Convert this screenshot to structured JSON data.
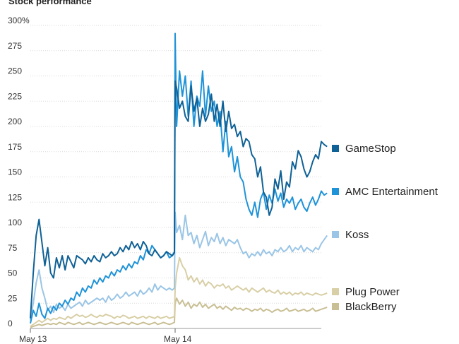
{
  "chart_data": {
    "type": "line",
    "title": "Stock performance",
    "xlabel": "",
    "ylabel": "",
    "ylim": [
      0,
      300
    ],
    "yticks": [
      0,
      25,
      50,
      75,
      100,
      125,
      150,
      175,
      200,
      225,
      250,
      275,
      300
    ],
    "ytick_labels": [
      "0",
      "25",
      "50",
      "75",
      "100",
      "125",
      "150",
      "175",
      "200",
      "225",
      "250",
      "275",
      "300%"
    ],
    "x_range": [
      0,
      2.06
    ],
    "x_ticks": [
      {
        "x": 0,
        "label": "May 13"
      },
      {
        "x": 1,
        "label": "May 14"
      }
    ],
    "legend_position": "right",
    "series": [
      {
        "name": "GameStop",
        "color": "#0f6196",
        "x": [
          0,
          0.02,
          0.04,
          0.06,
          0.08,
          0.1,
          0.12,
          0.14,
          0.16,
          0.18,
          0.2,
          0.22,
          0.24,
          0.26,
          0.28,
          0.3,
          0.32,
          0.34,
          0.36,
          0.38,
          0.4,
          0.42,
          0.44,
          0.46,
          0.48,
          0.5,
          0.52,
          0.54,
          0.56,
          0.58,
          0.6,
          0.62,
          0.64,
          0.66,
          0.68,
          0.7,
          0.72,
          0.74,
          0.76,
          0.78,
          0.8,
          0.82,
          0.84,
          0.86,
          0.88,
          0.9,
          0.92,
          0.94,
          0.96,
          0.98,
          0.995,
          1.0,
          1.01,
          1.03,
          1.05,
          1.07,
          1.09,
          1.11,
          1.13,
          1.15,
          1.17,
          1.19,
          1.21,
          1.23,
          1.25,
          1.27,
          1.29,
          1.31,
          1.33,
          1.35,
          1.37,
          1.39,
          1.41,
          1.43,
          1.45,
          1.47,
          1.49,
          1.51,
          1.53,
          1.55,
          1.57,
          1.59,
          1.61,
          1.63,
          1.65,
          1.67,
          1.69,
          1.71,
          1.73,
          1.75,
          1.77,
          1.79,
          1.81,
          1.83,
          1.85,
          1.87,
          1.89,
          1.91,
          1.93,
          1.95,
          1.97,
          1.99,
          2.01,
          2.03,
          2.05
        ],
        "y": [
          10,
          55,
          92,
          108,
          85,
          62,
          80,
          55,
          50,
          70,
          60,
          72,
          58,
          72,
          66,
          60,
          72,
          70,
          68,
          64,
          70,
          66,
          72,
          68,
          66,
          74,
          70,
          72,
          76,
          72,
          74,
          80,
          76,
          82,
          78,
          86,
          80,
          84,
          78,
          86,
          82,
          74,
          72,
          78,
          74,
          70,
          72,
          76,
          74,
          72,
          75,
          245,
          238,
          218,
          225,
          210,
          205,
          240,
          215,
          228,
          200,
          218,
          205,
          212,
          232,
          205,
          222,
          200,
          225,
          195,
          215,
          198,
          202,
          190,
          195,
          180,
          188,
          185,
          172,
          168,
          150,
          160,
          135,
          130,
          112,
          120,
          148,
          138,
          156,
          128,
          145,
          140,
          165,
          158,
          176,
          170,
          158,
          150,
          155,
          165,
          172,
          168,
          185,
          182,
          180
        ]
      },
      {
        "name": "AMC Entertainment",
        "color": "#1f93d8",
        "x": [
          0,
          0.02,
          0.04,
          0.06,
          0.08,
          0.1,
          0.12,
          0.14,
          0.16,
          0.18,
          0.2,
          0.22,
          0.24,
          0.26,
          0.28,
          0.3,
          0.32,
          0.34,
          0.36,
          0.38,
          0.4,
          0.42,
          0.44,
          0.46,
          0.48,
          0.5,
          0.52,
          0.54,
          0.56,
          0.58,
          0.6,
          0.62,
          0.64,
          0.66,
          0.68,
          0.7,
          0.72,
          0.74,
          0.76,
          0.78,
          0.8,
          0.82,
          0.84,
          0.86,
          0.88,
          0.9,
          0.92,
          0.94,
          0.96,
          0.98,
          0.995,
          1.0,
          1.01,
          1.03,
          1.05,
          1.07,
          1.09,
          1.11,
          1.13,
          1.15,
          1.17,
          1.19,
          1.21,
          1.23,
          1.25,
          1.27,
          1.29,
          1.31,
          1.33,
          1.35,
          1.37,
          1.39,
          1.41,
          1.43,
          1.45,
          1.47,
          1.49,
          1.51,
          1.53,
          1.55,
          1.57,
          1.59,
          1.61,
          1.63,
          1.65,
          1.67,
          1.69,
          1.71,
          1.73,
          1.75,
          1.77,
          1.79,
          1.81,
          1.83,
          1.85,
          1.87,
          1.89,
          1.91,
          1.93,
          1.95,
          1.97,
          1.99,
          2.01,
          2.03,
          2.05
        ],
        "y": [
          5,
          18,
          12,
          25,
          14,
          10,
          20,
          15,
          22,
          18,
          25,
          22,
          28,
          24,
          30,
          28,
          36,
          32,
          40,
          36,
          42,
          40,
          48,
          44,
          50,
          46,
          52,
          50,
          56,
          52,
          58,
          56,
          62,
          58,
          64,
          60,
          66,
          64,
          72,
          68,
          78,
          74,
          82,
          78,
          74,
          70,
          72,
          76,
          70,
          72,
          76,
          292,
          200,
          255,
          230,
          250,
          210,
          245,
          200,
          230,
          220,
          255,
          210,
          240,
          215,
          225,
          200,
          215,
          175,
          205,
          170,
          180,
          155,
          170,
          150,
          145,
          128,
          118,
          112,
          125,
          110,
          128,
          135,
          118,
          132,
          124,
          138,
          126,
          134,
          120,
          128,
          124,
          130,
          118,
          124,
          128,
          120,
          116,
          124,
          130,
          122,
          128,
          136,
          132,
          134
        ]
      },
      {
        "name": "Koss",
        "color": "#9ac5e6",
        "x": [
          0,
          0.02,
          0.04,
          0.06,
          0.08,
          0.1,
          0.12,
          0.14,
          0.16,
          0.18,
          0.2,
          0.22,
          0.24,
          0.26,
          0.28,
          0.3,
          0.32,
          0.34,
          0.36,
          0.38,
          0.4,
          0.42,
          0.44,
          0.46,
          0.48,
          0.5,
          0.52,
          0.54,
          0.56,
          0.58,
          0.6,
          0.62,
          0.64,
          0.66,
          0.68,
          0.7,
          0.72,
          0.74,
          0.76,
          0.78,
          0.8,
          0.82,
          0.84,
          0.86,
          0.88,
          0.9,
          0.92,
          0.94,
          0.96,
          0.98,
          0.995,
          1.0,
          1.01,
          1.03,
          1.05,
          1.07,
          1.09,
          1.11,
          1.13,
          1.15,
          1.17,
          1.19,
          1.21,
          1.23,
          1.25,
          1.27,
          1.29,
          1.31,
          1.33,
          1.35,
          1.37,
          1.39,
          1.41,
          1.43,
          1.45,
          1.47,
          1.49,
          1.51,
          1.53,
          1.55,
          1.57,
          1.59,
          1.61,
          1.63,
          1.65,
          1.67,
          1.69,
          1.71,
          1.73,
          1.75,
          1.77,
          1.79,
          1.81,
          1.83,
          1.85,
          1.87,
          1.89,
          1.91,
          1.93,
          1.95,
          1.97,
          1.99,
          2.01,
          2.03,
          2.05
        ],
        "y": [
          8,
          25,
          45,
          58,
          40,
          30,
          18,
          22,
          16,
          24,
          20,
          22,
          18,
          24,
          20,
          22,
          24,
          26,
          22,
          28,
          24,
          26,
          28,
          30,
          28,
          30,
          26,
          32,
          28,
          30,
          34,
          30,
          32,
          36,
          32,
          34,
          36,
          32,
          38,
          34,
          36,
          40,
          36,
          44,
          38,
          42,
          40,
          38,
          40,
          38,
          40,
          115,
          95,
          102,
          88,
          112,
          92,
          95,
          84,
          92,
          80,
          88,
          96,
          82,
          90,
          86,
          94,
          84,
          90,
          82,
          88,
          86,
          84,
          88,
          80,
          74,
          76,
          70,
          74,
          72,
          76,
          72,
          78,
          74,
          76,
          72,
          78,
          76,
          80,
          76,
          78,
          82,
          76,
          80,
          78,
          82,
          76,
          80,
          78,
          76,
          80,
          78,
          84,
          88,
          92
        ]
      },
      {
        "name": "Plug Power",
        "color": "#d8cfa6",
        "x": [
          0,
          0.02,
          0.04,
          0.06,
          0.08,
          0.1,
          0.12,
          0.14,
          0.16,
          0.18,
          0.2,
          0.22,
          0.24,
          0.26,
          0.28,
          0.3,
          0.32,
          0.34,
          0.36,
          0.38,
          0.4,
          0.42,
          0.44,
          0.46,
          0.48,
          0.5,
          0.52,
          0.54,
          0.56,
          0.58,
          0.6,
          0.62,
          0.64,
          0.66,
          0.68,
          0.7,
          0.72,
          0.74,
          0.76,
          0.78,
          0.8,
          0.82,
          0.84,
          0.86,
          0.88,
          0.9,
          0.92,
          0.94,
          0.96,
          0.98,
          0.995,
          1.0,
          1.01,
          1.03,
          1.05,
          1.07,
          1.09,
          1.11,
          1.13,
          1.15,
          1.17,
          1.19,
          1.21,
          1.23,
          1.25,
          1.27,
          1.29,
          1.31,
          1.33,
          1.35,
          1.37,
          1.39,
          1.41,
          1.43,
          1.45,
          1.47,
          1.49,
          1.51,
          1.53,
          1.55,
          1.57,
          1.59,
          1.61,
          1.63,
          1.65,
          1.67,
          1.69,
          1.71,
          1.73,
          1.75,
          1.77,
          1.79,
          1.81,
          1.83,
          1.85,
          1.87,
          1.89,
          1.91,
          1.93,
          1.95,
          1.97,
          1.99,
          2.01,
          2.03,
          2.05
        ],
        "y": [
          2,
          4,
          6,
          8,
          6,
          8,
          10,
          8,
          10,
          9,
          11,
          10,
          9,
          12,
          10,
          12,
          14,
          12,
          13,
          11,
          12,
          14,
          12,
          11,
          13,
          12,
          14,
          13,
          12,
          10,
          12,
          11,
          13,
          12,
          10,
          11,
          12,
          10,
          11,
          12,
          10,
          12,
          11,
          10,
          12,
          10,
          11,
          12,
          10,
          11,
          12,
          40,
          55,
          70,
          62,
          58,
          48,
          52,
          46,
          50,
          44,
          48,
          42,
          46,
          44,
          40,
          43,
          42,
          44,
          40,
          42,
          38,
          40,
          42,
          40,
          38,
          40,
          36,
          40,
          38,
          36,
          38,
          40,
          36,
          38,
          36,
          35,
          38,
          34,
          36,
          34,
          36,
          33,
          35,
          34,
          36,
          33,
          35,
          34,
          33,
          35,
          34,
          33,
          34,
          35
        ]
      },
      {
        "name": "BlackBerry",
        "color": "#c9bf94",
        "x": [
          0,
          0.02,
          0.04,
          0.06,
          0.08,
          0.1,
          0.12,
          0.14,
          0.16,
          0.18,
          0.2,
          0.22,
          0.24,
          0.26,
          0.28,
          0.3,
          0.32,
          0.34,
          0.36,
          0.38,
          0.4,
          0.42,
          0.44,
          0.46,
          0.48,
          0.5,
          0.52,
          0.54,
          0.56,
          0.58,
          0.6,
          0.62,
          0.64,
          0.66,
          0.68,
          0.7,
          0.72,
          0.74,
          0.76,
          0.78,
          0.8,
          0.82,
          0.84,
          0.86,
          0.88,
          0.9,
          0.92,
          0.94,
          0.96,
          0.98,
          0.995,
          1.0,
          1.01,
          1.03,
          1.05,
          1.07,
          1.09,
          1.11,
          1.13,
          1.15,
          1.17,
          1.19,
          1.21,
          1.23,
          1.25,
          1.27,
          1.29,
          1.31,
          1.33,
          1.35,
          1.37,
          1.39,
          1.41,
          1.43,
          1.45,
          1.47,
          1.49,
          1.51,
          1.53,
          1.55,
          1.57,
          1.59,
          1.61,
          1.63,
          1.65,
          1.67,
          1.69,
          1.71,
          1.73,
          1.75,
          1.77,
          1.79,
          1.81,
          1.83,
          1.85,
          1.87,
          1.89,
          1.91,
          1.93,
          1.95,
          1.97,
          1.99,
          2.01,
          2.03,
          2.05
        ],
        "y": [
          1,
          2,
          3,
          4,
          3,
          4,
          5,
          4,
          5,
          4,
          6,
          5,
          4,
          6,
          5,
          4,
          5,
          6,
          4,
          5,
          6,
          5,
          4,
          5,
          6,
          5,
          4,
          5,
          6,
          5,
          4,
          5,
          6,
          5,
          4,
          6,
          5,
          4,
          5,
          6,
          5,
          4,
          5,
          6,
          4,
          5,
          6,
          5,
          4,
          5,
          6,
          25,
          30,
          24,
          28,
          22,
          26,
          20,
          24,
          22,
          26,
          21,
          24,
          20,
          22,
          24,
          20,
          22,
          19,
          22,
          20,
          18,
          21,
          19,
          20,
          18,
          20,
          19,
          17,
          19,
          18,
          20,
          17,
          19,
          18,
          16,
          18,
          19,
          17,
          18,
          20,
          17,
          18,
          19,
          17,
          18,
          19,
          17,
          18,
          20,
          17,
          18,
          19,
          20,
          21
        ]
      }
    ]
  }
}
